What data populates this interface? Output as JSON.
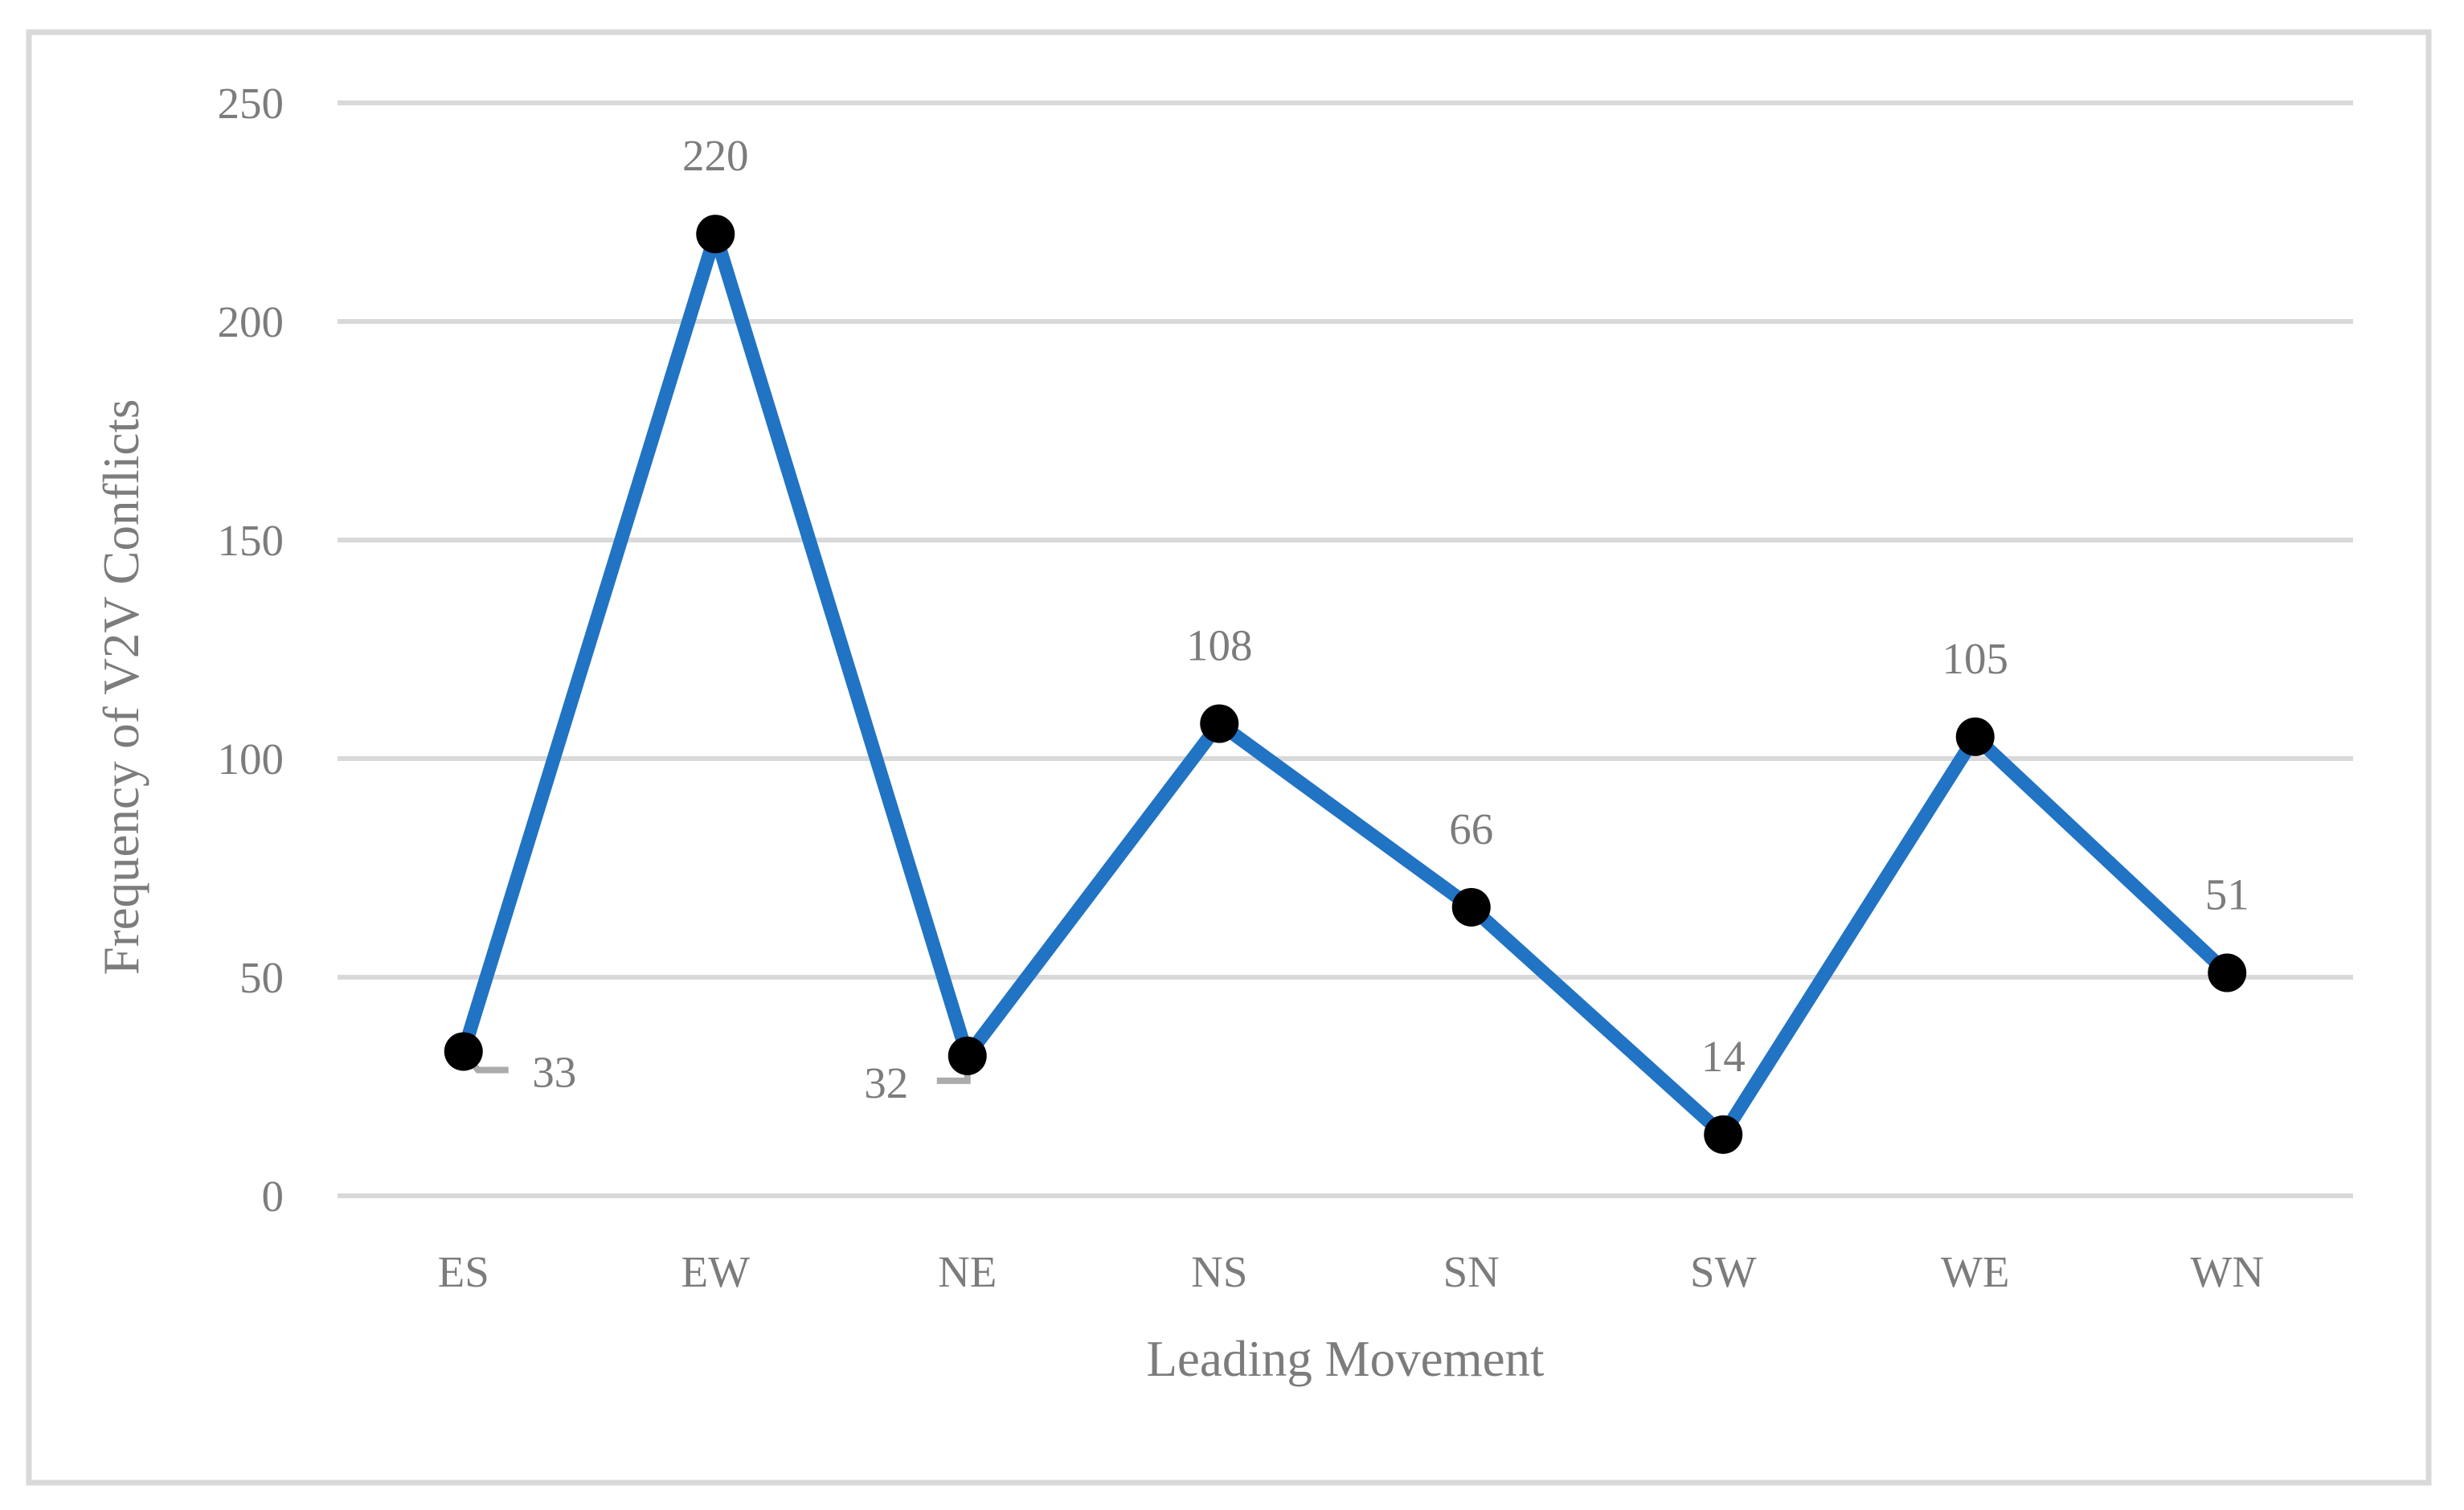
{
  "chart_data": {
    "type": "line",
    "title": "",
    "categories": [
      "ES",
      "EW",
      "NE",
      "NS",
      "SN",
      "SW",
      "WE",
      "WN"
    ],
    "values": [
      33,
      220,
      32,
      108,
      66,
      14,
      105,
      51
    ],
    "data_labels": [
      "33",
      "220",
      "32",
      "108",
      "66",
      "14",
      "105",
      "51"
    ],
    "xlabel": "Leading Movement",
    "ylabel": "Frequency of V2V Conflicts",
    "ylim": [
      0,
      250
    ],
    "yticks": [
      0,
      50,
      100,
      150,
      200,
      250
    ],
    "ytick_labels": [
      "0",
      "50",
      "100",
      "150",
      "200",
      "250"
    ],
    "grid": "horizontal-only",
    "legend_position": "none",
    "marker_shape": "circle",
    "data_label_placements": [
      "right-with-leader",
      "above",
      "left-with-leader",
      "above",
      "above",
      "above",
      "above",
      "above"
    ],
    "colors": {
      "series_line": "#2173C4",
      "marker": "#000000",
      "gridline": "#D9D9D9",
      "chart_border": "#D9D9D9",
      "text": "#7C7C7C",
      "leader_line": "#ABABAB",
      "background": "#FFFFFF"
    }
  }
}
